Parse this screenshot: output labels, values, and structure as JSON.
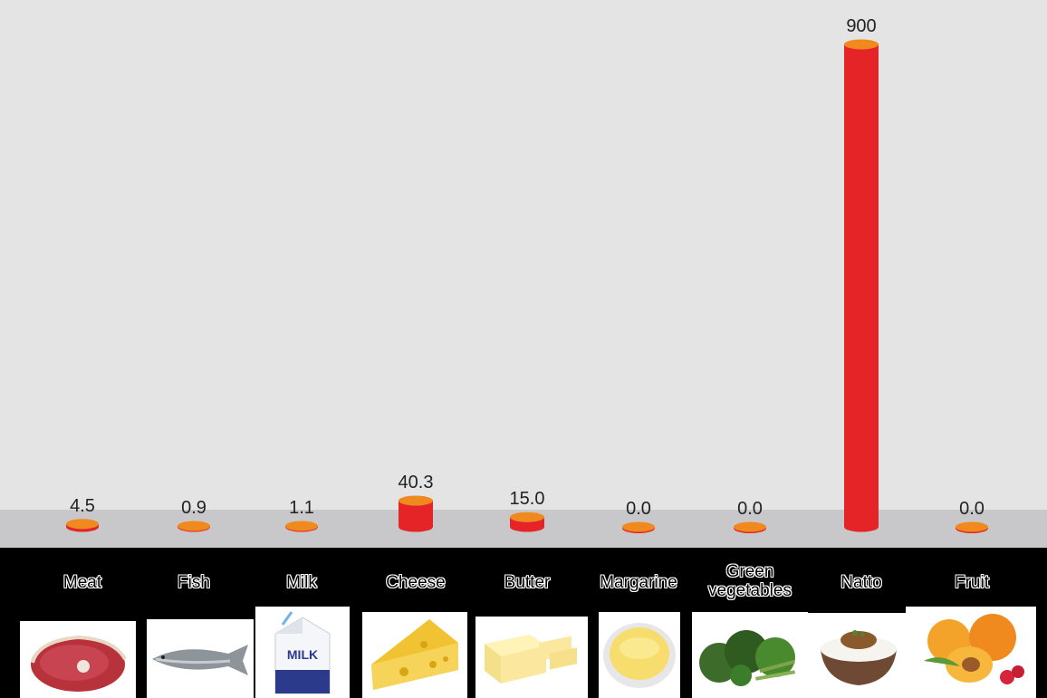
{
  "chart_data": {
    "type": "bar",
    "categories": [
      "Meat",
      "Fish",
      "Milk",
      "Cheese",
      "Butter",
      "Margarine",
      "Green vegetables",
      "Natto",
      "Fruit"
    ],
    "values": [
      4.5,
      0.9,
      1.1,
      40.3,
      15.0,
      0.0,
      0.0,
      900,
      0.0
    ],
    "value_labels": [
      "4.5",
      "0.9",
      "1.1",
      "40.3",
      "15.0",
      "0.0",
      "0.0",
      "900",
      "0.0"
    ],
    "title": "",
    "xlabel": "",
    "ylabel": "",
    "ylim": [
      0,
      900
    ],
    "grid": false,
    "legend": "none",
    "colors": {
      "background": "#e4e4e4",
      "baseline_band": "#c8c8ca",
      "bar_side": "#e52428",
      "bar_top": "#f08a1e",
      "footer": "#000000"
    }
  },
  "food_images": [
    {
      "category": "Meat",
      "icon": "meat-steak-icon"
    },
    {
      "category": "Fish",
      "icon": "fish-icon"
    },
    {
      "category": "Milk",
      "icon": "milk-carton-icon"
    },
    {
      "category": "Cheese",
      "icon": "cheese-wedge-icon"
    },
    {
      "category": "Butter",
      "icon": "butter-block-icon"
    },
    {
      "category": "Margarine",
      "icon": "margarine-tub-icon"
    },
    {
      "category": "Green vegetables",
      "icon": "green-vegetables-icon"
    },
    {
      "category": "Natto",
      "icon": "natto-bowl-icon"
    },
    {
      "category": "Fruit",
      "icon": "fruit-apricot-icon"
    }
  ],
  "milk_carton_text": "MILK"
}
